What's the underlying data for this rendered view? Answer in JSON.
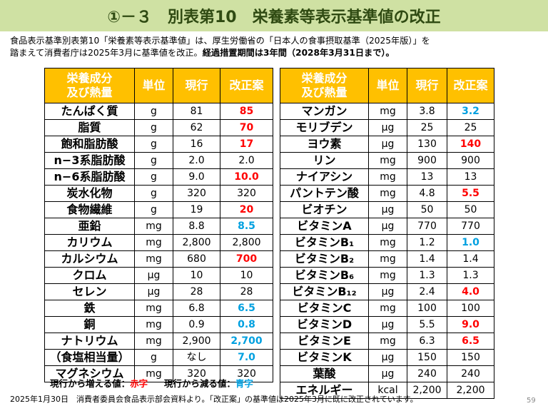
{
  "title": "①－３　別表第10　栄養素等表示基準値の改正",
  "intro": {
    "line1": "食品表示基準別表第10「栄養素等表示基準値」は、厚生労働省の「日本人の食事摂取基準（2025年版）」を",
    "line2_normal": "踏まえて消費者庁は2025年3月に基準値を改正。",
    "line2_bold": "経過措置期間は3年間（2028年3月31日まで）。"
  },
  "headers": {
    "name_line1": "栄養成分",
    "name_line2": "及び熱量",
    "unit": "単位",
    "current": "現行",
    "revised": "改正案"
  },
  "left_rows": [
    {
      "name": "たんぱく質",
      "unit": "g",
      "current": "81",
      "revised": "85",
      "change": "up"
    },
    {
      "name": "脂質",
      "unit": "g",
      "current": "62",
      "revised": "70",
      "change": "up"
    },
    {
      "name": "飽和脂肪酸",
      "unit": "g",
      "current": "16",
      "revised": "17",
      "change": "up"
    },
    {
      "name": "n−3系脂肪酸",
      "unit": "g",
      "current": "2.0",
      "revised": "2.0",
      "change": "same"
    },
    {
      "name": "n−6系脂肪酸",
      "unit": "g",
      "current": "9.0",
      "revised": "10.0",
      "change": "up"
    },
    {
      "name": "炭水化物",
      "unit": "g",
      "current": "320",
      "revised": "320",
      "change": "same"
    },
    {
      "name": "食物繊維",
      "unit": "g",
      "current": "19",
      "revised": "20",
      "change": "up"
    },
    {
      "name": "亜鉛",
      "unit": "mg",
      "current": "8.8",
      "revised": "8.5",
      "change": "down"
    },
    {
      "name": "カリウム",
      "unit": "mg",
      "current": "2,800",
      "revised": "2,800",
      "change": "same"
    },
    {
      "name": "カルシウム",
      "unit": "mg",
      "current": "680",
      "revised": "700",
      "change": "up"
    },
    {
      "name": "クロム",
      "unit": "μg",
      "current": "10",
      "revised": "10",
      "change": "same"
    },
    {
      "name": "セレン",
      "unit": "μg",
      "current": "28",
      "revised": "28",
      "change": "same"
    },
    {
      "name": "鉄",
      "unit": "mg",
      "current": "6.8",
      "revised": "6.5",
      "change": "down"
    },
    {
      "name": "銅",
      "unit": "mg",
      "current": "0.9",
      "revised": "0.8",
      "change": "down"
    },
    {
      "name": "ナトリウム",
      "unit": "mg",
      "current": "2,900",
      "revised": "2,700",
      "change": "down"
    },
    {
      "name": "（食塩相当量）",
      "unit": "g",
      "current": "なし",
      "revised": "7.0",
      "change": "down"
    },
    {
      "name": "マグネシウム",
      "unit": "mg",
      "current": "320",
      "revised": "320",
      "change": "same"
    }
  ],
  "right_rows": [
    {
      "name": "マンガン",
      "unit": "mg",
      "current": "3.8",
      "revised": "3.2",
      "change": "down"
    },
    {
      "name": "モリブデン",
      "unit": "μg",
      "current": "25",
      "revised": "25",
      "change": "same"
    },
    {
      "name": "ヨウ素",
      "unit": "μg",
      "current": "130",
      "revised": "140",
      "change": "up"
    },
    {
      "name": "リン",
      "unit": "mg",
      "current": "900",
      "revised": "900",
      "change": "same"
    },
    {
      "name": "ナイアシン",
      "unit": "mg",
      "current": "13",
      "revised": "13",
      "change": "same"
    },
    {
      "name": "パントテン酸",
      "unit": "mg",
      "current": "4.8",
      "revised": "5.5",
      "change": "up"
    },
    {
      "name": "ビオチン",
      "unit": "μg",
      "current": "50",
      "revised": "50",
      "change": "same"
    },
    {
      "name": "ビタミンA",
      "unit": "μg",
      "current": "770",
      "revised": "770",
      "change": "same"
    },
    {
      "name": "ビタミンB₁",
      "unit": "mg",
      "current": "1.2",
      "revised": "1.0",
      "change": "down"
    },
    {
      "name": "ビタミンB₂",
      "unit": "mg",
      "current": "1.4",
      "revised": "1.4",
      "change": "same"
    },
    {
      "name": "ビタミンB₆",
      "unit": "mg",
      "current": "1.3",
      "revised": "1.3",
      "change": "same"
    },
    {
      "name": "ビタミンB₁₂",
      "unit": "μg",
      "current": "2.4",
      "revised": "4.0",
      "change": "up"
    },
    {
      "name": "ビタミンC",
      "unit": "mg",
      "current": "100",
      "revised": "100",
      "change": "same"
    },
    {
      "name": "ビタミンD",
      "unit": "μg",
      "current": "5.5",
      "revised": "9.0",
      "change": "up"
    },
    {
      "name": "ビタミンE",
      "unit": "mg",
      "current": "6.3",
      "revised": "6.5",
      "change": "up"
    },
    {
      "name": "ビタミンK",
      "unit": "μg",
      "current": "150",
      "revised": "150",
      "change": "same"
    },
    {
      "name": "葉酸",
      "unit": "μg",
      "current": "240",
      "revised": "240",
      "change": "same"
    },
    {
      "name": "エネルギー",
      "unit": "kcal",
      "current": "2,200",
      "revised": "2,200",
      "change": "same"
    }
  ],
  "legend": {
    "increase_label": "現行から増える値：",
    "increase_word": "赤字",
    "decrease_label": "現行から減る値：",
    "decrease_word": "青字"
  },
  "footer": "2025年1月30日　消費者委員会食品表示部会資料より。「改正案」の基準値は2025年3月に既に改正されています。",
  "page_number": "59",
  "colors": {
    "title_bg": "#cfe1a3",
    "header_bg": "#ffc000",
    "increase": "#ff0000",
    "decrease": "#00a0e0"
  }
}
